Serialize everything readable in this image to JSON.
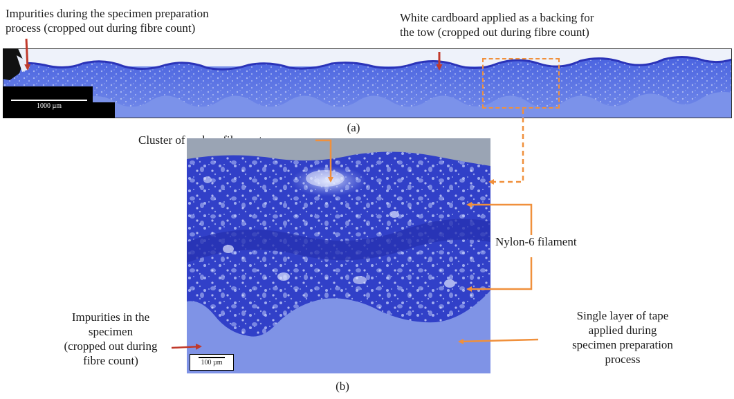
{
  "labels": {
    "impurities_prep": [
      "Impurities during the specimen preparation",
      "process (cropped out during fibre count)"
    ],
    "cardboard": [
      "White cardboard applied as a backing for",
      "the tow (cropped out during fibre count)"
    ],
    "panel_a": "(a)",
    "panel_b": "(b)",
    "carbon_cluster": "Cluster of carbon filaments",
    "nylon": "Nylon-6 filament",
    "impurities_specimen": [
      "Impurities in the",
      "specimen",
      "(cropped out during",
      "fibre count)"
    ],
    "tape_layer": [
      "Single layer of tape",
      "applied during",
      "specimen preparation",
      "process"
    ]
  },
  "scalebars": {
    "strip": "1000 µm",
    "detail": "100 µm"
  },
  "colors": {
    "resin_blue": "#3a4fd6",
    "deep_blue": "#2a33b8",
    "cardboard_white": "#eef2fa",
    "orange_arrow": "#f0903c",
    "red_arrow": "#c0392b"
  }
}
